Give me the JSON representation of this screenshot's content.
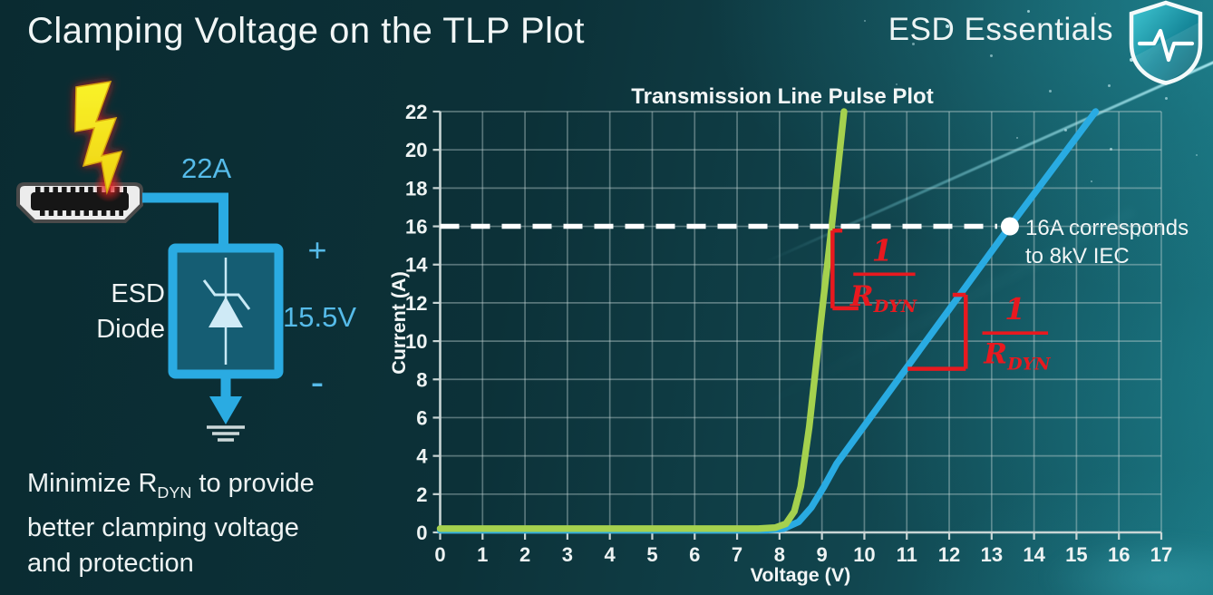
{
  "header": {
    "title": "Clamping Voltage on the TLP Plot",
    "brand": "ESD Essentials"
  },
  "left_diagram": {
    "surge_current": "22A",
    "device_line1": "ESD",
    "device_line2": "Diode",
    "plus": "+",
    "clamp_voltage": "15.5V",
    "minus": "-"
  },
  "footnote": {
    "line1_prefix": "Minimize R",
    "line1_sub": "DYN",
    "line1_suffix": " to provide",
    "line2": "better clamping voltage",
    "line3": "and protection"
  },
  "chart_data": {
    "type": "line",
    "title": "Transmission Line Pulse Plot",
    "xlabel": "Voltage (V)",
    "ylabel": "Current (A)",
    "xlim": [
      0,
      17
    ],
    "ylim": [
      0,
      22
    ],
    "xticks": [
      0,
      1,
      2,
      3,
      4,
      5,
      6,
      7,
      8,
      9,
      10,
      11,
      12,
      13,
      14,
      15,
      16,
      17
    ],
    "yticks": [
      0,
      2,
      4,
      6,
      8,
      10,
      12,
      14,
      16,
      18,
      20,
      22
    ],
    "grid": true,
    "legend_position": "none",
    "series": [
      {
        "name": "high-rdyn-curve-blue",
        "color": "#29abe2",
        "points": [
          [
            0,
            0.12
          ],
          [
            7.7,
            0.12
          ],
          [
            8.1,
            0.2
          ],
          [
            8.45,
            0.55
          ],
          [
            8.75,
            1.3
          ],
          [
            9.05,
            2.4
          ],
          [
            9.35,
            3.6
          ],
          [
            13.43,
            16
          ],
          [
            15.45,
            22
          ]
        ]
      },
      {
        "name": "low-rdyn-curve-green",
        "color": "#a5d14e",
        "points": [
          [
            0,
            0.2
          ],
          [
            7.5,
            0.2
          ],
          [
            7.9,
            0.25
          ],
          [
            8.15,
            0.45
          ],
          [
            8.35,
            1.1
          ],
          [
            8.5,
            2.4
          ],
          [
            8.7,
            5.5
          ],
          [
            9.0,
            11.5
          ],
          [
            9.23,
            16
          ],
          [
            9.52,
            22
          ]
        ]
      }
    ],
    "reference_line": {
      "y": 16,
      "x_start": 0,
      "x_end": 13.43,
      "color": "#ffffff",
      "style": "dashed"
    },
    "marker": {
      "x": 13.43,
      "y": 16,
      "color": "#ffffff",
      "label_line1": "16A corresponds",
      "label_line2": "to 8kV IEC"
    },
    "annotations": [
      {
        "numerator": "1",
        "denominator": "R",
        "denominator_sub": "DYN",
        "color": "#e8191f",
        "num_pos": [
          10.42,
          14.2
        ],
        "bar": [
          9.74,
          13.5,
          11.2
        ],
        "den_pos": [
          10.45,
          11.85
        ],
        "segments": [
          [
            9.25,
            15.78,
            9.25,
            11.72
          ],
          [
            9.25,
            15.78,
            9.48,
            15.78
          ],
          [
            9.25,
            11.72,
            9.86,
            11.72
          ]
        ]
      },
      {
        "numerator": "1",
        "denominator": "R",
        "denominator_sub": "DYN",
        "color": "#e8191f",
        "num_pos": [
          13.55,
          11.15
        ],
        "bar": [
          12.78,
          10.42,
          14.33
        ],
        "den_pos": [
          13.6,
          8.85
        ],
        "segments": [
          [
            12.39,
            12.42,
            12.39,
            8.55
          ],
          [
            12.39,
            8.55,
            11.02,
            8.55
          ],
          [
            12.39,
            12.42,
            12.08,
            12.42
          ]
        ]
      }
    ]
  },
  "colors": {
    "background_left": "#0a2b31",
    "background_right": "#19737e",
    "accent_cyan": "#29abe2",
    "label_cyan": "#56bbe9",
    "curve_green": "#a5d14e",
    "curve_blue": "#29abe2",
    "annotation_red": "#e8191f",
    "dashed_line": "#ffffff",
    "text": "#eef3f3"
  }
}
